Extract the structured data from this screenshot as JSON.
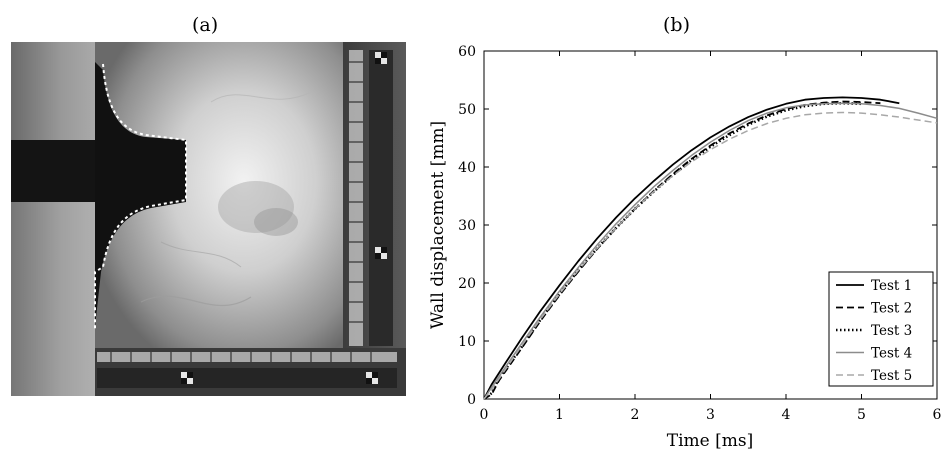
{
  "panel_a": {
    "label": "(a)"
  },
  "panel_b": {
    "label": "(b)"
  },
  "chart_data": {
    "type": "line",
    "title": "",
    "xlabel": "Time [ms]",
    "ylabel": "Wall displacement [mm]",
    "xlim": [
      0,
      6
    ],
    "ylim": [
      0,
      60
    ],
    "xticks": [
      "0",
      "1",
      "2",
      "3",
      "4",
      "5",
      "6"
    ],
    "yticks": [
      "0",
      "10",
      "20",
      "30",
      "40",
      "50",
      "60"
    ],
    "legend_position": "bottom-right",
    "grid": false,
    "series": [
      {
        "name": "Test 1",
        "color": "#000000",
        "style": "solid",
        "x": [
          0,
          0.1,
          0.3,
          0.5,
          0.75,
          1.0,
          1.25,
          1.5,
          1.75,
          2.0,
          2.25,
          2.5,
          2.75,
          3.0,
          3.25,
          3.5,
          3.75,
          4.0,
          4.25,
          4.5,
          4.75,
          5.0,
          5.25,
          5.5
        ],
        "y": [
          0,
          2.5,
          6.5,
          10.5,
          15.2,
          19.6,
          23.8,
          27.7,
          31.3,
          34.6,
          37.6,
          40.4,
          42.9,
          45.1,
          47.0,
          48.6,
          49.9,
          50.9,
          51.6,
          51.9,
          52.0,
          51.9,
          51.6,
          51.0
        ]
      },
      {
        "name": "Test 2",
        "color": "#000000",
        "style": "dashed",
        "x": [
          0,
          0.1,
          0.2,
          0.5,
          0.75,
          1.0,
          1.25,
          1.5,
          1.75,
          2.0,
          2.25,
          2.5,
          2.75,
          3.0,
          3.25,
          3.5,
          3.75,
          4.0,
          4.25,
          4.5,
          4.75,
          5.0,
          5.25
        ],
        "y": [
          0,
          0.8,
          3.2,
          8.8,
          13.5,
          17.9,
          22.0,
          25.9,
          29.5,
          32.8,
          35.9,
          38.8,
          41.4,
          43.7,
          45.8,
          47.5,
          48.9,
          50.0,
          50.7,
          51.1,
          51.3,
          51.2,
          51.0
        ]
      },
      {
        "name": "Test 3",
        "color": "#000000",
        "style": "dotted",
        "x": [
          0,
          0.1,
          0.2,
          0.5,
          0.75,
          1.0,
          1.25,
          1.5,
          1.75,
          2.0,
          2.25,
          2.5,
          2.75,
          3.0,
          3.25,
          3.5,
          3.75,
          4.0,
          4.25,
          4.5,
          4.75,
          5.0
        ],
        "y": [
          0,
          1.0,
          3.6,
          9.0,
          13.7,
          18.1,
          22.2,
          26.0,
          29.5,
          32.8,
          35.8,
          38.6,
          41.2,
          43.5,
          45.5,
          47.3,
          48.7,
          49.8,
          50.5,
          50.9,
          51.0,
          50.9
        ]
      },
      {
        "name": "Test 4",
        "color": "#8c8c8c",
        "style": "solid",
        "x": [
          0,
          0.1,
          0.3,
          0.5,
          0.75,
          1.0,
          1.25,
          1.5,
          1.75,
          2.0,
          2.25,
          2.5,
          2.75,
          3.0,
          3.25,
          3.5,
          3.75,
          4.0,
          4.25,
          4.5,
          4.75,
          5.0,
          5.25,
          5.5,
          5.75,
          6.0
        ],
        "y": [
          0,
          2.0,
          5.8,
          9.6,
          14.2,
          18.6,
          22.7,
          26.6,
          30.2,
          33.5,
          36.6,
          39.4,
          42.0,
          44.3,
          46.3,
          48.0,
          49.3,
          50.2,
          50.7,
          50.9,
          51.0,
          50.9,
          50.6,
          50.1,
          49.3,
          48.4
        ]
      },
      {
        "name": "Test 5",
        "color": "#a8a8a8",
        "style": "dashed",
        "x": [
          0,
          0.1,
          0.3,
          0.5,
          0.75,
          1.0,
          1.25,
          1.5,
          1.75,
          2.0,
          2.25,
          2.5,
          2.75,
          3.0,
          3.25,
          3.5,
          3.75,
          4.0,
          4.25,
          4.5,
          4.75,
          5.0,
          5.25,
          5.5,
          5.75,
          6.0
        ],
        "y": [
          0,
          1.6,
          5.4,
          9.2,
          13.8,
          18.1,
          22.2,
          26.0,
          29.5,
          32.8,
          35.8,
          38.5,
          40.9,
          43.0,
          44.8,
          46.3,
          47.5,
          48.4,
          49.0,
          49.3,
          49.4,
          49.3,
          49.0,
          48.6,
          48.1,
          47.6
        ]
      }
    ]
  }
}
